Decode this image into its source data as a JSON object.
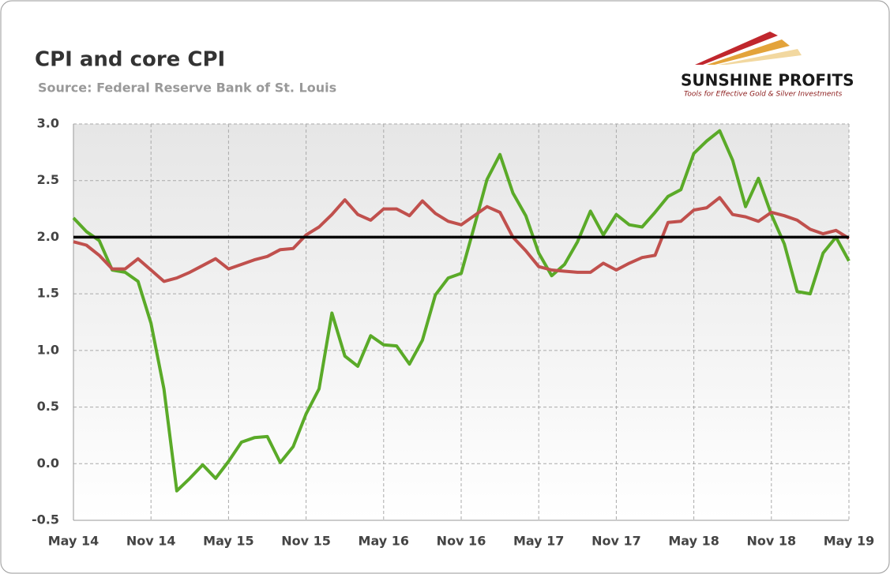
{
  "chart_data": {
    "type": "line",
    "title": "CPI and core CPI",
    "subtitle": "Source: Federal Reserve Bank of St. Louis",
    "categories": [
      "May 14",
      null,
      null,
      null,
      null,
      null,
      "Nov 14",
      null,
      null,
      null,
      null,
      null,
      "May 15",
      null,
      null,
      null,
      null,
      null,
      "Nov 15",
      null,
      null,
      null,
      null,
      null,
      "May 16",
      null,
      null,
      null,
      null,
      null,
      "Nov 16",
      null,
      null,
      null,
      null,
      null,
      "May 17",
      null,
      null,
      null,
      null,
      null,
      "Nov 17",
      null,
      null,
      null,
      null,
      null,
      "May 18",
      null,
      null,
      null,
      null,
      null,
      "Nov 18",
      null,
      null,
      null,
      null,
      null,
      "May 19"
    ],
    "series": [
      {
        "color": "#5aaa28",
        "values": [
          2.17,
          2.05,
          1.97,
          1.71,
          1.69,
          1.61,
          1.24,
          0.66,
          -0.24,
          -0.13,
          -0.01,
          -0.13,
          0.02,
          0.19,
          0.23,
          0.24,
          0.01,
          0.15,
          0.44,
          0.66,
          1.33,
          0.95,
          0.86,
          1.13,
          1.05,
          1.04,
          0.88,
          1.09,
          1.49,
          1.64,
          1.68,
          2.09,
          2.51,
          2.73,
          2.39,
          2.19,
          1.86,
          1.66,
          1.76,
          1.96,
          2.23,
          2.02,
          2.2,
          2.11,
          2.09,
          2.22,
          2.36,
          2.42,
          2.74,
          2.85,
          2.94,
          2.68,
          2.27,
          2.52,
          2.2,
          1.94,
          1.52,
          1.5,
          1.86,
          2.0,
          1.79
        ]
      },
      {
        "color": "#c0504d",
        "values": [
          1.96,
          1.93,
          1.84,
          1.72,
          1.72,
          1.81,
          1.71,
          1.61,
          1.64,
          1.69,
          1.75,
          1.81,
          1.72,
          1.76,
          1.8,
          1.83,
          1.89,
          1.9,
          2.02,
          2.09,
          2.2,
          2.33,
          2.2,
          2.15,
          2.25,
          2.25,
          2.19,
          2.32,
          2.21,
          2.14,
          2.11,
          2.19,
          2.27,
          2.22,
          2.0,
          1.88,
          1.74,
          1.71,
          1.7,
          1.69,
          1.69,
          1.77,
          1.71,
          1.77,
          1.82,
          1.84,
          2.13,
          2.14,
          2.24,
          2.26,
          2.35,
          2.2,
          2.18,
          2.14,
          2.22,
          2.19,
          2.15,
          2.07,
          2.03,
          2.06,
          1.99
        ]
      }
    ],
    "reference_line": 2,
    "ylim": [
      -0.5,
      3
    ],
    "yticks": [
      {
        "value": 3,
        "label": "3.0"
      },
      2.5,
      {
        "value": 2,
        "label": "2.0"
      },
      1.5,
      {
        "value": 1,
        "label": "1.0"
      },
      0.5,
      {
        "value": 0,
        "label": "0.0"
      },
      -0.5
    ],
    "grid": true
  },
  "logo": {
    "name": "SUNSHINE PROFITS",
    "tagline": "Tools for Effective Gold & Silver Investments"
  }
}
